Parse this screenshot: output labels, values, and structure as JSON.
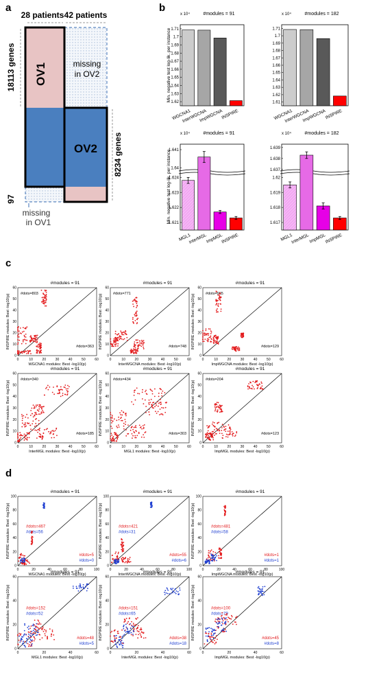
{
  "panels": {
    "a": "a",
    "b": "b",
    "c": "c",
    "d": "d"
  },
  "panel_a": {
    "col1": "28 patients",
    "col2": "42 patients",
    "row1": "18113 genes",
    "row2": "8234 genes",
    "row3": "97",
    "ov1": "OV1",
    "ov2": "OV2",
    "missing_ov2": [
      "missing",
      "in OV2"
    ],
    "missing_ov1": [
      "missing",
      "in OV1"
    ]
  },
  "colors": {
    "pink": "#e8c4c4",
    "blue": "#4a7fbf",
    "dots": "#a8bcd8",
    "gray1": "#cccccc",
    "gray2": "#a6a6a6",
    "gray3": "#595959",
    "red": "#ff0000",
    "mag1": "#f2a6f2",
    "mag2": "#e66ae6",
    "mag3": "#e600e6",
    "scatter_red": "#e31a1c",
    "scatter_blue": "#1f3fd1"
  },
  "bar_ylabel": "Min. negative test log-lik. per instance",
  "c_xlabels": [
    "WGCNA1 modules: Best -log10(p)",
    "InterWGCNA modules: Best -log10(p)",
    "ImpWGCNA modules: Best -log10(p)",
    "InterMGL modules: Best -log10(p)",
    "MGL1 modules: Best -log10(p)",
    "ImpMGL modules: Best -log10(p)"
  ],
  "d_xlabels": [
    "WGCNA1 modules: Best -log10(p)",
    "InterWGCNA modules: Best -log10(p)",
    "ImpWGCNA modules: Best -log10(p)",
    "MGL1 modules: Best -log10(p)",
    "InterMGL modules: Best -log10(p)",
    "ImpMGL modules: Best -log10(p)"
  ],
  "scatter_ylabel": "INSPIRE modules: Best -log10(p)",
  "chart_data": [
    {
      "type": "bar",
      "title": "#modules = 91",
      "exponent": "x 10⁴",
      "categories": [
        "WGCNA1",
        "InterWGCNA",
        "ImpWGCNA",
        "INSPIRE"
      ],
      "values": [
        1.7085,
        1.7083,
        1.6986,
        1.6213
      ],
      "ylim": [
        1.615,
        1.715
      ],
      "yticks": [
        "1.62",
        "1.63",
        "1.64",
        "1.65",
        "1.66",
        "1.67",
        "1.68",
        "1.69",
        "1.7",
        "1.71"
      ]
    },
    {
      "type": "bar",
      "title": "#modules = 182",
      "exponent": "x 10⁴",
      "categories": [
        "WGCNA1",
        "InterWGCNA",
        "ImpWGCNA",
        "INSPIRE"
      ],
      "values": [
        1.7085,
        1.7083,
        1.6962,
        1.6182
      ],
      "ylim": [
        1.605,
        1.715
      ],
      "yticks": [
        "1.61",
        "1.62",
        "1.63",
        "1.64",
        "1.65",
        "1.66",
        "1.67",
        "1.68",
        "1.69",
        "1.7",
        "1.71"
      ]
    },
    {
      "type": "bar",
      "title": "#modules = 91",
      "exponent": "x 10⁴",
      "categories": [
        "MGL1",
        "InterMGL",
        "ImpMGL",
        "INSPIRE"
      ],
      "values": [
        1.6238,
        1.6406,
        1.6217,
        1.6213
      ],
      "errors": [
        0.0002,
        0.0003,
        0.0001,
        0.0001
      ],
      "broken_axis": true,
      "yticks": [
        "1.621",
        "1.622",
        "1.623",
        "1.624",
        "1.64",
        "1.641"
      ]
    },
    {
      "type": "bar",
      "title": "#modules = 182",
      "exponent": "x 10⁴",
      "categories": [
        "MGL1",
        "InterMGL",
        "ImpMGL",
        "INSPIRE"
      ],
      "values": [
        1.6195,
        1.6383,
        1.6181,
        1.6173
      ],
      "errors": [
        0.0002,
        0.0003,
        0.0002,
        0.0001
      ],
      "broken_axis": true,
      "yticks": [
        "1.617",
        "1.618",
        "1.619",
        "1.62",
        "1.637",
        "1.638",
        "1.639"
      ]
    },
    {
      "type": "scatter",
      "title": "#modules = 91",
      "ann_top": "#dots=803",
      "ann_bottom": "#dots=363",
      "xlim": [
        0,
        60
      ],
      "ylim": [
        0,
        60
      ]
    },
    {
      "type": "scatter",
      "title": "#modules = 91",
      "ann_top": "#dots=771",
      "ann_bottom": "#dots=748",
      "xlim": [
        0,
        60
      ],
      "ylim": [
        0,
        60
      ]
    },
    {
      "type": "scatter",
      "title": "#modules = 91",
      "ann_top": "#dots=965",
      "ann_bottom": "#dots=129",
      "xlim": [
        0,
        60
      ],
      "ylim": [
        0,
        60
      ]
    },
    {
      "type": "scatter",
      "title": "#modules = 91",
      "ann_top": "#dots=340",
      "ann_bottom": "#dots=185",
      "xlim": [
        0,
        60
      ],
      "ylim": [
        0,
        60
      ]
    },
    {
      "type": "scatter",
      "title": "#modules = 91",
      "ann_top": "#dots=434",
      "ann_bottom": "#dots=303",
      "xlim": [
        0,
        60
      ],
      "ylim": [
        0,
        60
      ]
    },
    {
      "type": "scatter",
      "title": "#modules = 91",
      "ann_top": "#dots=204",
      "ann_bottom": "#dots=123",
      "xlim": [
        0,
        60
      ],
      "ylim": [
        0,
        60
      ]
    },
    {
      "type": "scatter",
      "title": "#modules = 91",
      "ann_red_top": "#dots=467",
      "ann_blue_top": "#dots=56",
      "ann_red_bottom": "#dots=5",
      "ann_blue_bottom": "#dots=0",
      "xlim": [
        0,
        100
      ],
      "ylim": [
        0,
        100
      ]
    },
    {
      "type": "scatter",
      "title": "#modules = 91",
      "ann_red_top": "#dots=421",
      "ann_blue_top": "#dots=31",
      "ann_red_bottom": "#dots=55",
      "ann_blue_bottom": "#dots=6",
      "xlim": [
        0,
        100
      ],
      "ylim": [
        0,
        100
      ]
    },
    {
      "type": "scatter",
      "title": "#modules = 91",
      "ann_red_top": "#dots=481",
      "ann_blue_top": "#dots=58",
      "ann_red_bottom": "#dots=1",
      "ann_blue_bottom": "#dots=1",
      "xlim": [
        0,
        100
      ],
      "ylim": [
        0,
        100
      ]
    },
    {
      "type": "scatter",
      "title": "#modules = 91",
      "ann_red_top": "#dots=152",
      "ann_blue_top": "#dots=52",
      "ann_red_bottom": "#dots=48",
      "ann_blue_bottom": "#dots=5",
      "xlim": [
        0,
        60
      ],
      "ylim": [
        0,
        60
      ]
    },
    {
      "type": "scatter",
      "title": "#modules = 91",
      "ann_red_top": "#dots=151",
      "ann_blue_top": "#dots=65",
      "ann_red_bottom": "#dots=38",
      "ann_blue_bottom": "#dots=18",
      "xlim": [
        0,
        60
      ],
      "ylim": [
        0,
        60
      ]
    },
    {
      "type": "scatter",
      "title": "#modules = 91",
      "ann_red_top": "#dots=100",
      "ann_blue_top": "#dots=79",
      "ann_red_bottom": "#dots=45",
      "ann_blue_bottom": "#dots=8",
      "xlim": [
        0,
        60
      ],
      "ylim": [
        0,
        60
      ]
    }
  ]
}
